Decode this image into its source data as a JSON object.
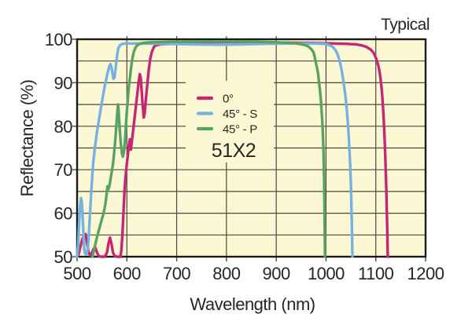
{
  "labels": {
    "typical": "Typical",
    "model": "51X2"
  },
  "colors": {
    "outer_bg": "#FFFFFF",
    "plot_bg": "#FBF8D3",
    "grid": "#4A4840",
    "frame": "#1B1B1B",
    "text": "#262626",
    "magenta": "#C72577",
    "blue": "#76B2E1",
    "green": "#58A361"
  },
  "legend": {
    "items": [
      {
        "label": "0°",
        "color": "#C72577"
      },
      {
        "label": "45° - S",
        "color": "#76B2E1"
      },
      {
        "label": "45° - P",
        "color": "#58A361"
      }
    ]
  },
  "chart_data": {
    "type": "line",
    "title": "Typical",
    "xlabel": "Wavelength (nm)",
    "ylabel": "Reflectance (%)",
    "xlim": [
      500,
      1200
    ],
    "ylim": [
      50,
      100
    ],
    "xticks": [
      500,
      600,
      700,
      800,
      900,
      1000,
      1100,
      1200
    ],
    "yticks": [
      50,
      60,
      70,
      80,
      90,
      100
    ],
    "x_grid_step": 100,
    "y_grid_step": 5,
    "grid": "on",
    "legend_position": "inside-center-left",
    "series": [
      {
        "name": "0°",
        "color": "#C72577",
        "points": [
          [
            500,
            50
          ],
          [
            503,
            50.6
          ],
          [
            506,
            52
          ],
          [
            510,
            53.8
          ],
          [
            513,
            54.8
          ],
          [
            517,
            55.2
          ],
          [
            520,
            53
          ],
          [
            523,
            51
          ],
          [
            526,
            50.3
          ],
          [
            530,
            51
          ],
          [
            533,
            51.8
          ],
          [
            537,
            52
          ],
          [
            540,
            51
          ],
          [
            543,
            50.2
          ],
          [
            548,
            50
          ],
          [
            556,
            50
          ],
          [
            560,
            51
          ],
          [
            563,
            53
          ],
          [
            566,
            54.4
          ],
          [
            569,
            53
          ],
          [
            572,
            51
          ],
          [
            575,
            50.2
          ],
          [
            580,
            50
          ],
          [
            587,
            50
          ],
          [
            589,
            51.5
          ],
          [
            591,
            55
          ],
          [
            593,
            60
          ],
          [
            595,
            64.5
          ],
          [
            597,
            68
          ],
          [
            600,
            71.5
          ],
          [
            602,
            73.5
          ],
          [
            604,
            75.5
          ],
          [
            606,
            77
          ],
          [
            607,
            75.5
          ],
          [
            608,
            74.6
          ],
          [
            610,
            76.5
          ],
          [
            612,
            78.5
          ],
          [
            615,
            81.5
          ],
          [
            618,
            84.5
          ],
          [
            621,
            87.5
          ],
          [
            624,
            90.5
          ],
          [
            626,
            92
          ],
          [
            628,
            91
          ],
          [
            630,
            87.5
          ],
          [
            632,
            84.5
          ],
          [
            634,
            82
          ],
          [
            636,
            83.2
          ],
          [
            638,
            86
          ],
          [
            641,
            89.5
          ],
          [
            644,
            93
          ],
          [
            647,
            95.5
          ],
          [
            650,
            97
          ],
          [
            654,
            98.2
          ],
          [
            658,
            98.6
          ],
          [
            666,
            98.8
          ],
          [
            680,
            98.9
          ],
          [
            700,
            99
          ],
          [
            730,
            99.15
          ],
          [
            760,
            99.3
          ],
          [
            800,
            99.4
          ],
          [
            845,
            99.4
          ],
          [
            890,
            99.3
          ],
          [
            930,
            99.2
          ],
          [
            970,
            99.15
          ],
          [
            1010,
            99.05
          ],
          [
            1040,
            98.95
          ],
          [
            1060,
            98.8
          ],
          [
            1072,
            98.6
          ],
          [
            1082,
            98.2
          ],
          [
            1090,
            97.6
          ],
          [
            1096,
            96.8
          ],
          [
            1101,
            95.5
          ],
          [
            1105,
            94
          ],
          [
            1108,
            92.2
          ],
          [
            1111,
            89.5
          ],
          [
            1113,
            87
          ],
          [
            1115,
            83.5
          ],
          [
            1117,
            79
          ],
          [
            1119,
            73.5
          ],
          [
            1121,
            66
          ],
          [
            1123,
            56
          ],
          [
            1124,
            50
          ]
        ]
      },
      {
        "name": "45° - S",
        "color": "#76B2E1",
        "points": [
          [
            500,
            50
          ],
          [
            502,
            52.5
          ],
          [
            504,
            57.5
          ],
          [
            506,
            61.5
          ],
          [
            508,
            63.5
          ],
          [
            510,
            62
          ],
          [
            512,
            57
          ],
          [
            514,
            52
          ],
          [
            516,
            50.7
          ],
          [
            519,
            50.5
          ],
          [
            521,
            51.5
          ],
          [
            523,
            54
          ],
          [
            525,
            58
          ],
          [
            527,
            62
          ],
          [
            529,
            66
          ],
          [
            531,
            69.5
          ],
          [
            533,
            72.3
          ],
          [
            535,
            74.4
          ],
          [
            538,
            77
          ],
          [
            541,
            79.4
          ],
          [
            544,
            81.5
          ],
          [
            547,
            83.6
          ],
          [
            550,
            85.6
          ],
          [
            553,
            87.6
          ],
          [
            556,
            89.5
          ],
          [
            559,
            91
          ],
          [
            562,
            92.6
          ],
          [
            565,
            93.8
          ],
          [
            567,
            94.3
          ],
          [
            569,
            93.6
          ],
          [
            571,
            92.2
          ],
          [
            573,
            90.9
          ],
          [
            575,
            91.2
          ],
          [
            577,
            92.9
          ],
          [
            579,
            95
          ],
          [
            581,
            96.9
          ],
          [
            583,
            98
          ],
          [
            586,
            98.6
          ],
          [
            590,
            98.9
          ],
          [
            598,
            99.05
          ],
          [
            620,
            99.05
          ],
          [
            650,
            99
          ],
          [
            690,
            98.9
          ],
          [
            730,
            98.8
          ],
          [
            780,
            98.75
          ],
          [
            830,
            98.8
          ],
          [
            880,
            98.95
          ],
          [
            930,
            99.05
          ],
          [
            975,
            99.05
          ],
          [
            1000,
            98.9
          ],
          [
            1008,
            98.6
          ],
          [
            1014,
            98.2
          ],
          [
            1019,
            97.5
          ],
          [
            1023,
            96.6
          ],
          [
            1026,
            95.5
          ],
          [
            1029,
            94.2
          ],
          [
            1032,
            92.5
          ],
          [
            1035,
            90.3
          ],
          [
            1038,
            87.8
          ],
          [
            1040,
            86
          ],
          [
            1042,
            83.5
          ],
          [
            1044,
            80.5
          ],
          [
            1046,
            77
          ],
          [
            1048,
            72.5
          ],
          [
            1050,
            66.5
          ],
          [
            1052,
            57
          ],
          [
            1053,
            50
          ]
        ]
      },
      {
        "name": "45° - P",
        "color": "#58A361",
        "points": [
          [
            531,
            50
          ],
          [
            534,
            51.5
          ],
          [
            537,
            53
          ],
          [
            540,
            54.5
          ],
          [
            543,
            55.8
          ],
          [
            546,
            57
          ],
          [
            549,
            58.3
          ],
          [
            552,
            59.5
          ],
          [
            555,
            61
          ],
          [
            557,
            62.3
          ],
          [
            559,
            64
          ],
          [
            560,
            65.2
          ],
          [
            561,
            66.2
          ],
          [
            562,
            65.4
          ],
          [
            564,
            65.8
          ],
          [
            566,
            67
          ],
          [
            568,
            68.4
          ],
          [
            570,
            69.8
          ],
          [
            572,
            71.3
          ],
          [
            574,
            73.3
          ],
          [
            576,
            75.8
          ],
          [
            578,
            78.8
          ],
          [
            580,
            82
          ],
          [
            582,
            85
          ],
          [
            583,
            84.3
          ],
          [
            584,
            82.3
          ],
          [
            586,
            78.8
          ],
          [
            588,
            75.8
          ],
          [
            590,
            73.8
          ],
          [
            592,
            73
          ],
          [
            594,
            74
          ],
          [
            596,
            76.5
          ],
          [
            598,
            80
          ],
          [
            600,
            83.5
          ],
          [
            602,
            86.5
          ],
          [
            604,
            89
          ],
          [
            606,
            91
          ],
          [
            608,
            93
          ],
          [
            610,
            94.8
          ],
          [
            612,
            96.1
          ],
          [
            614,
            97.1
          ],
          [
            617,
            98
          ],
          [
            620,
            98.5
          ],
          [
            625,
            98.9
          ],
          [
            632,
            99.15
          ],
          [
            645,
            99.3
          ],
          [
            685,
            99.4
          ],
          [
            735,
            99.47
          ],
          [
            790,
            99.5
          ],
          [
            840,
            99.45
          ],
          [
            885,
            99.35
          ],
          [
            915,
            99.25
          ],
          [
            935,
            99.1
          ],
          [
            948,
            98.9
          ],
          [
            957,
            98.7
          ],
          [
            964,
            98.4
          ],
          [
            970,
            97.8
          ],
          [
            975,
            97
          ],
          [
            979,
            95
          ],
          [
            982,
            93.4
          ],
          [
            984,
            92.2
          ],
          [
            986,
            90
          ],
          [
            988,
            88.2
          ],
          [
            990,
            85.5
          ],
          [
            992,
            82
          ],
          [
            993.5,
            78.8
          ],
          [
            995,
            74
          ],
          [
            996,
            68.5
          ],
          [
            997,
            61
          ],
          [
            997.8,
            52
          ],
          [
            998,
            50
          ]
        ]
      }
    ]
  }
}
